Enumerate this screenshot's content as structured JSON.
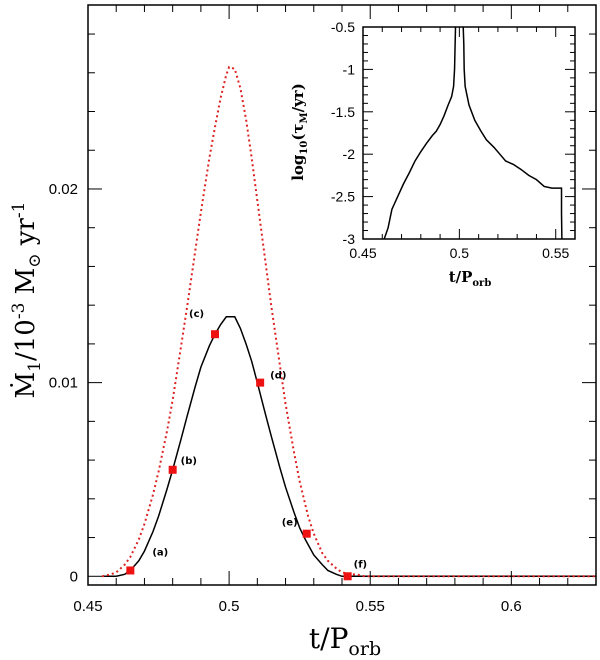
{
  "chart_data": [
    {
      "type": "line",
      "xlim": [
        0.45,
        0.63
      ],
      "ylim": [
        -0.00045,
        0.0295
      ],
      "x_ticks": [
        "0.45",
        "0.5",
        "0.55",
        "0.6"
      ],
      "x_tick_values": [
        0.45,
        0.5,
        0.55,
        0.6
      ],
      "y_ticks": [
        "0",
        "0.01",
        "0.02"
      ],
      "y_tick_values": [
        0,
        0.01,
        0.02
      ],
      "xlabel": {
        "main": "t/P",
        "sub": "orb"
      },
      "ylabel": {
        "dot": "Ṁ",
        "sub": "1",
        "text1": "/10",
        "exp": "-3",
        "text2": " M",
        "odot": "⊙",
        "text3": " yr",
        "exp2": "-1"
      },
      "series": [
        {
          "name": "mass-transfer-rate",
          "style": "solid",
          "color": "#000000",
          "x": [
            0.455,
            0.46,
            0.463,
            0.465,
            0.468,
            0.47,
            0.473,
            0.475,
            0.478,
            0.48,
            0.483,
            0.485,
            0.488,
            0.49,
            0.493,
            0.495,
            0.497,
            0.499,
            0.5,
            0.502,
            0.504,
            0.506,
            0.508,
            0.51,
            0.513,
            0.515,
            0.518,
            0.52,
            0.523,
            0.525,
            0.527,
            0.53,
            0.533,
            0.535,
            0.538,
            0.54,
            0.542,
            0.545,
            0.55,
            0.56,
            0.58,
            0.6,
            0.63
          ],
          "y": [
            0,
            0,
            0.0001,
            0.0003,
            0.0008,
            0.0013,
            0.0023,
            0.0031,
            0.0045,
            0.0055,
            0.0071,
            0.0082,
            0.0098,
            0.0108,
            0.0119,
            0.0125,
            0.013,
            0.0134,
            0.0134,
            0.0134,
            0.0128,
            0.012,
            0.0111,
            0.01,
            0.0083,
            0.0072,
            0.0056,
            0.0046,
            0.0033,
            0.0025,
            0.0019,
            0.0011,
            0.0006,
            0.0003,
            0.0001,
            0,
            0,
            0,
            0,
            0,
            0,
            0,
            0
          ]
        },
        {
          "name": "comparison-rate",
          "style": "dotted",
          "color": "#dd2222",
          "x": [
            0.455,
            0.458,
            0.46,
            0.463,
            0.465,
            0.468,
            0.47,
            0.473,
            0.475,
            0.478,
            0.48,
            0.483,
            0.485,
            0.488,
            0.49,
            0.493,
            0.495,
            0.497,
            0.499,
            0.5,
            0.502,
            0.504,
            0.506,
            0.508,
            0.51,
            0.513,
            0.515,
            0.518,
            0.52,
            0.523,
            0.525,
            0.528,
            0.53,
            0.533,
            0.535,
            0.538,
            0.54,
            0.543,
            0.545,
            0.548,
            0.55,
            0.555,
            0.56,
            0.58,
            0.6,
            0.63
          ],
          "y": [
            0,
            0.0001,
            0.0002,
            0.0006,
            0.001,
            0.0019,
            0.0027,
            0.0042,
            0.0054,
            0.0075,
            0.0091,
            0.0119,
            0.0138,
            0.0168,
            0.0188,
            0.0216,
            0.0232,
            0.0247,
            0.0259,
            0.0263,
            0.0262,
            0.0252,
            0.0236,
            0.0216,
            0.0194,
            0.0161,
            0.0139,
            0.0109,
            0.0089,
            0.0064,
            0.0049,
            0.0031,
            0.0022,
            0.0012,
            0.0008,
            0.0004,
            0.0002,
            0.0001,
            0.0001,
            0,
            0,
            0,
            0,
            0,
            0,
            0
          ]
        }
      ],
      "markers": [
        {
          "label": "(a)",
          "x": 0.465,
          "y": 0.0003
        },
        {
          "label": "(b)",
          "x": 0.48,
          "y": 0.0055
        },
        {
          "label": "(c)",
          "x": 0.495,
          "y": 0.0125
        },
        {
          "label": "(d)",
          "x": 0.511,
          "y": 0.01
        },
        {
          "label": "(e)",
          "x": 0.5275,
          "y": 0.0022
        },
        {
          "label": "(f)",
          "x": 0.542,
          "y": 0.0
        }
      ],
      "marker_color": "#ee1111"
    },
    {
      "type": "line",
      "role": "inset",
      "xlim": [
        0.45,
        0.56
      ],
      "ylim": [
        -3,
        -0.5
      ],
      "x_ticks": [
        "0.45",
        "0.5",
        "0.55"
      ],
      "x_tick_values": [
        0.45,
        0.5,
        0.55
      ],
      "y_ticks": [
        "-0.5",
        "-1",
        "-1.5",
        "-2",
        "-2.5",
        "-3"
      ],
      "y_tick_values": [
        -0.5,
        -1,
        -1.5,
        -2,
        -2.5,
        -3
      ],
      "xlabel": {
        "main": "t/P",
        "sub": "orb"
      },
      "ylabel": {
        "prefix": "log",
        "sub1": "10",
        "text": "(τ",
        "sub2": "M",
        "suffix": "/yr)"
      },
      "series": [
        {
          "name": "timescale-rise",
          "style": "solid",
          "color": "#000000",
          "x": [
            0.461,
            0.463,
            0.465,
            0.468,
            0.471,
            0.474,
            0.477,
            0.48,
            0.483,
            0.486,
            0.488,
            0.49,
            0.492,
            0.494,
            0.496,
            0.497,
            0.4975,
            0.4978,
            0.498
          ],
          "y": [
            -3.0,
            -2.87,
            -2.65,
            -2.5,
            -2.35,
            -2.22,
            -2.08,
            -1.97,
            -1.87,
            -1.78,
            -1.73,
            -1.65,
            -1.55,
            -1.43,
            -1.32,
            -1.2,
            -1.0,
            -0.7,
            -0.5
          ]
        },
        {
          "name": "timescale-fall",
          "style": "solid",
          "color": "#000000",
          "x": [
            0.502,
            0.5023,
            0.5025,
            0.503,
            0.505,
            0.508,
            0.511,
            0.514,
            0.518,
            0.521,
            0.524,
            0.528,
            0.532,
            0.536,
            0.54,
            0.544,
            0.548,
            0.552,
            0.553,
            0.553,
            0.5532
          ],
          "y": [
            -0.5,
            -0.7,
            -1.0,
            -1.2,
            -1.42,
            -1.6,
            -1.72,
            -1.83,
            -1.92,
            -2.0,
            -2.08,
            -2.12,
            -2.18,
            -2.25,
            -2.3,
            -2.38,
            -2.4,
            -2.4,
            -2.4,
            -2.7,
            -3.0
          ]
        }
      ]
    }
  ]
}
